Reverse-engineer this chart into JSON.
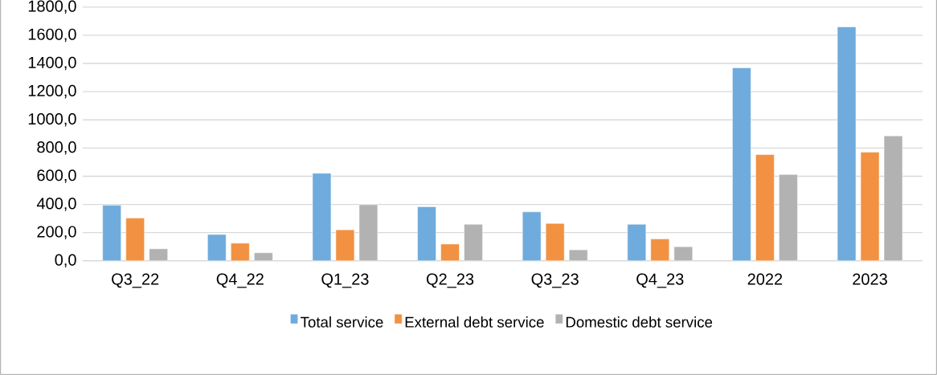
{
  "chart_data": {
    "type": "bar",
    "categories": [
      "Q3_22",
      "Q4_22",
      "Q1_23",
      "Q2_23",
      "Q3_23",
      "Q4_23",
      "2022",
      "2023"
    ],
    "series": [
      {
        "name": "Total service",
        "color": "#6fabdc",
        "values": [
          394,
          187,
          621,
          384,
          347,
          259,
          1369,
          1659
        ]
      },
      {
        "name": "External debt service",
        "color": "#f29141",
        "values": [
          303,
          125,
          220,
          119,
          265,
          155,
          754,
          771
        ]
      },
      {
        "name": "Domestic debt service",
        "color": "#b2b2b2",
        "values": [
          85,
          57,
          398,
          259,
          78,
          100,
          612,
          886
        ]
      }
    ],
    "ylim": [
      0,
      1800
    ],
    "yticks": [
      {
        "value": 0,
        "label": "0,0"
      },
      {
        "value": 200,
        "label": "200,0"
      },
      {
        "value": 400,
        "label": "400,0"
      },
      {
        "value": 600,
        "label": "600,0"
      },
      {
        "value": 800,
        "label": "800,0"
      },
      {
        "value": 1000,
        "label": "1000,0"
      },
      {
        "value": 1200,
        "label": "1200,0"
      },
      {
        "value": 1400,
        "label": "1400,0"
      },
      {
        "value": 1600,
        "label": "1600,0"
      },
      {
        "value": 1800,
        "label": "1800,0"
      }
    ],
    "grid": "y",
    "legend": "bottom"
  }
}
